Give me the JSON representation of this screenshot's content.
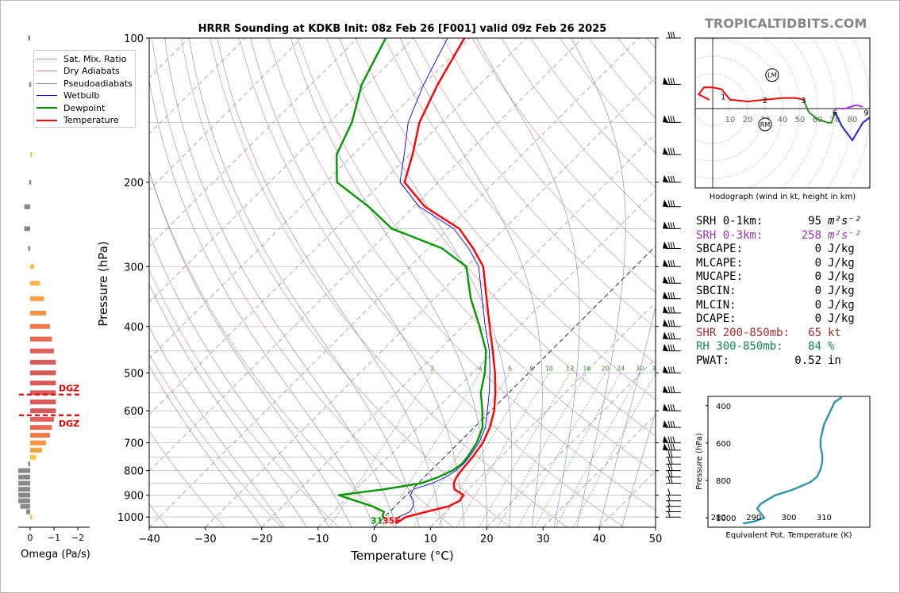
{
  "watermark": "TROPICALTIDBITS.COM",
  "title": "HRRR Sounding at KDKB Init: 08z Feb 26 [F001] valid 09z Feb 26 2025",
  "legend": [
    {
      "label": "Sat. Mix. Ratio",
      "color": "#2e8b2e",
      "style": "dotted"
    },
    {
      "label": "Dry Adiabats",
      "color": "#d98080",
      "style": "solid"
    },
    {
      "label": "Pseudoadiabats",
      "color": "#8080c8",
      "style": "solid"
    },
    {
      "label": "Wetbulb",
      "color": "#0000ff",
      "style": "solid"
    },
    {
      "label": "Dewpoint",
      "color": "#009900",
      "style": "thick"
    },
    {
      "label": "Temperature",
      "color": "#ff0000",
      "style": "thick"
    }
  ],
  "params": [
    {
      "label": "SRH 0-1km:",
      "value": "95",
      "unit": "m²s⁻²",
      "color": "#000000"
    },
    {
      "label": "SRH 0-3km:",
      "value": "258",
      "unit": "m²s⁻²",
      "color": "#9933aa"
    },
    {
      "label": "SBCAPE:",
      "value": "0",
      "unit": "J/kg",
      "color": "#000000"
    },
    {
      "label": "MLCAPE:",
      "value": "0",
      "unit": "J/kg",
      "color": "#000000"
    },
    {
      "label": "MUCAPE:",
      "value": "0",
      "unit": "J/kg",
      "color": "#000000"
    },
    {
      "label": "SBCIN:",
      "value": "0",
      "unit": "J/kg",
      "color": "#000000"
    },
    {
      "label": "MLCIN:",
      "value": "0",
      "unit": "J/kg",
      "color": "#000000"
    },
    {
      "label": "DCAPE:",
      "value": "0",
      "unit": "J/kg",
      "color": "#000000"
    },
    {
      "label": "SHR 200-850mb:",
      "value": "65",
      "unit": "kt",
      "color": "#a52a2a"
    },
    {
      "label": "RH 300-850mb:",
      "value": "84",
      "unit": "%",
      "color": "#138a4c"
    },
    {
      "label": "PWAT:",
      "value": "0.52",
      "unit": "in",
      "color": "#000000"
    }
  ],
  "hodograph": {
    "caption": "Hodograph (wind in kt, height in km)",
    "ring_labels": [
      "10",
      "20",
      "30",
      "40",
      "50",
      "60",
      "70",
      "80"
    ],
    "height_labels": [
      "1",
      "2",
      "3",
      "6",
      "9"
    ],
    "lm_label": "LM",
    "rm_label": "RM"
  },
  "omega": {
    "xlabel": "Omega (Pa/s)",
    "ticks": [
      "0",
      "−1",
      "−2"
    ],
    "dgz_labels": [
      "DGZ",
      "DGZ"
    ]
  },
  "surface_label": "31",
  "surface_label_2": "35F",
  "chart_data": [
    {
      "type": "line",
      "name": "skew-t",
      "title": "HRRR Sounding at KDKB Init: 08z Feb 26 [F001] valid 09z Feb 26 2025",
      "xlabel": "Temperature (°C)",
      "ylabel": "Pressure (hPa)",
      "x_ticks": [
        "−40",
        "−30",
        "−20",
        "−10",
        "0",
        "10",
        "20",
        "30",
        "40",
        "50"
      ],
      "y_ticks": [
        "100",
        "200",
        "300",
        "400",
        "500",
        "600",
        "700",
        "800",
        "900",
        "1000"
      ],
      "xlim": [
        -40,
        50
      ],
      "ylim": [
        1050,
        100
      ],
      "y_scale": "log",
      "mixing_ratio_labels": [
        "2",
        "4",
        "6",
        "8",
        "10",
        "13",
        "16",
        "20",
        "24",
        "30",
        "36"
      ],
      "series": [
        {
          "name": "Temperature",
          "color": "#ff0000",
          "p": [
            1030,
            1000,
            975,
            950,
            925,
            900,
            875,
            850,
            825,
            800,
            775,
            750,
            700,
            650,
            600,
            550,
            500,
            450,
            400,
            350,
            300,
            275,
            250,
            225,
            200,
            175,
            150,
            125,
            100
          ],
          "t": [
            3.2,
            3.8,
            6.5,
            9.5,
            10.5,
            10.2,
            7.5,
            6.3,
            5.7,
            5.4,
            5.2,
            5.0,
            4.3,
            2.8,
            0.6,
            -2.4,
            -6.0,
            -10.3,
            -15.2,
            -20.7,
            -27.0,
            -32.0,
            -38.0,
            -48.0,
            -56.0,
            -59.5,
            -64.0,
            -67.5,
            -71.0
          ]
        },
        {
          "name": "Dewpoint",
          "color": "#009900",
          "p": [
            1010,
            995,
            975,
            950,
            925,
            900,
            875,
            850,
            825,
            800,
            775,
            750,
            700,
            650,
            600,
            550,
            500,
            450,
            400,
            350,
            300,
            275,
            250,
            225,
            200,
            175,
            150,
            125,
            100
          ],
          "t": [
            0.5,
            -0.5,
            -1.0,
            -4.0,
            -8.0,
            -12.0,
            -5.0,
            0.5,
            2.5,
            3.8,
            4.3,
            4.1,
            3.2,
            1.5,
            -1.5,
            -5.0,
            -7.8,
            -11.5,
            -17.0,
            -23.5,
            -30.0,
            -37.5,
            -50.0,
            -58.0,
            -68.0,
            -73.0,
            -76.0,
            -81.0,
            -85.0
          ]
        },
        {
          "name": "Wetbulb",
          "color": "#0000ff",
          "p": [
            1000,
            975,
            950,
            925,
            900,
            875,
            850,
            825,
            800,
            775,
            750,
            700,
            650,
            600,
            550,
            500,
            450,
            400,
            350,
            300,
            275,
            250,
            225,
            200,
            175,
            150,
            125,
            100
          ],
          "t": [
            2.5,
            3.6,
            3.2,
            2.3,
            0.7,
            0.2,
            2.5,
            3.8,
            4.4,
            4.6,
            4.4,
            3.6,
            2.0,
            -0.6,
            -3.5,
            -6.9,
            -10.9,
            -16.0,
            -21.5,
            -27.8,
            -32.8,
            -39.0,
            -49.0,
            -56.8,
            -61.0,
            -66.0,
            -70.0,
            -74.0
          ]
        }
      ],
      "omega_levels": [
        {
          "p": 1000,
          "w": -0.1,
          "color": "#f5c542"
        },
        {
          "p": 975,
          "w": 0.2,
          "color": "#888888"
        },
        {
          "p": 950,
          "w": 0.5,
          "color": "#888888"
        },
        {
          "p": 925,
          "w": 0.6,
          "color": "#888888"
        },
        {
          "p": 900,
          "w": 0.6,
          "color": "#888888"
        },
        {
          "p": 875,
          "w": 0.6,
          "color": "#888888"
        },
        {
          "p": 850,
          "w": 0.6,
          "color": "#888888"
        },
        {
          "p": 825,
          "w": 0.6,
          "color": "#888888"
        },
        {
          "p": 800,
          "w": 0.6,
          "color": "#888888"
        },
        {
          "p": 775,
          "w": 0.1,
          "color": "#888888"
        },
        {
          "p": 750,
          "w": -0.3,
          "color": "#f5c542"
        },
        {
          "p": 725,
          "w": -0.6,
          "color": "#f5a142"
        },
        {
          "p": 700,
          "w": -0.8,
          "color": "#f59342"
        },
        {
          "p": 675,
          "w": -1.0,
          "color": "#f07a4a"
        },
        {
          "p": 650,
          "w": -1.1,
          "color": "#e9684f"
        },
        {
          "p": 625,
          "w": -1.2,
          "color": "#e0605a"
        },
        {
          "p": 600,
          "w": -1.3,
          "color": "#d95a5a"
        },
        {
          "p": 575,
          "w": -1.3,
          "color": "#d95a5a"
        },
        {
          "p": 550,
          "w": -1.3,
          "color": "#d95a5a"
        },
        {
          "p": 525,
          "w": -1.3,
          "color": "#d95a5a"
        },
        {
          "p": 500,
          "w": -1.3,
          "color": "#d95a5a"
        },
        {
          "p": 475,
          "w": -1.3,
          "color": "#d95a5a"
        },
        {
          "p": 450,
          "w": -1.2,
          "color": "#e0605a"
        },
        {
          "p": 425,
          "w": -1.1,
          "color": "#e9684f"
        },
        {
          "p": 400,
          "w": -1.0,
          "color": "#f07a4a"
        },
        {
          "p": 375,
          "w": -0.8,
          "color": "#f59342"
        },
        {
          "p": 350,
          "w": -0.7,
          "color": "#f5a142"
        },
        {
          "p": 325,
          "w": -0.5,
          "color": "#f5b542"
        },
        {
          "p": 300,
          "w": -0.2,
          "color": "#f5c542"
        },
        {
          "p": 275,
          "w": 0.1,
          "color": "#888888"
        },
        {
          "p": 250,
          "w": 0.3,
          "color": "#888888"
        },
        {
          "p": 225,
          "w": 0.3,
          "color": "#888888"
        },
        {
          "p": 200,
          "w": 0.05,
          "color": "#888888"
        },
        {
          "p": 175,
          "w": -0.1,
          "color": "#f5c542"
        },
        {
          "p": 125,
          "w": 0.05,
          "color": "#888888"
        },
        {
          "p": 100,
          "w": 0.1,
          "color": "#888888"
        }
      ],
      "dgz_pressures": [
        555,
        613
      ],
      "wind_barbs_p": [
        100,
        125,
        150,
        175,
        200,
        225,
        250,
        275,
        300,
        325,
        350,
        375,
        400,
        425,
        450,
        500,
        550,
        600,
        650,
        700,
        725,
        750,
        775,
        800,
        825,
        850,
        900,
        925,
        950,
        975,
        1000
      ]
    },
    {
      "type": "line",
      "name": "hodograph",
      "title": "",
      "xlabel": "Hodograph (wind in kt, height in km)",
      "xlim": [
        -10,
        90
      ],
      "ylim": [
        -45,
        40
      ],
      "series": [
        {
          "name": "0-3 km",
          "color": "#ff0000",
          "u": [
            -2,
            -8,
            -5,
            0,
            5,
            10,
            20,
            30,
            40,
            48,
            52
          ],
          "v": [
            5,
            8,
            12,
            12,
            11,
            5,
            4,
            5,
            6,
            6,
            5
          ]
        },
        {
          "name": "3-6 km",
          "color": "#2a8a2a",
          "u": [
            52,
            55,
            60,
            66,
            68,
            70
          ],
          "v": [
            5,
            -2,
            -6,
            -8,
            -8,
            -2
          ]
        },
        {
          "name": "6-9 km",
          "color": "#1f1fe0",
          "u": [
            70,
            74,
            80,
            86,
            90
          ],
          "v": [
            -2,
            -10,
            -18,
            -8,
            -5
          ]
        },
        {
          "name": "9+ km",
          "color": "#aa33cc",
          "u": [
            70,
            76,
            82,
            86
          ],
          "v": [
            0,
            0,
            2,
            1
          ]
        }
      ],
      "points": [
        {
          "label": "1",
          "u": 6,
          "v": 7
        },
        {
          "label": "2",
          "u": 30,
          "v": 5
        },
        {
          "label": "3",
          "u": 52,
          "v": 5
        },
        {
          "label": "6",
          "u": 70,
          "v": -2
        },
        {
          "label": "9",
          "u": 88,
          "v": -2
        },
        {
          "label": "LM",
          "u": 34,
          "v": 19
        },
        {
          "label": "RM",
          "u": 30,
          "v": -9
        }
      ]
    },
    {
      "type": "line",
      "name": "theta-e",
      "title": "",
      "xlabel": "Equivalent Pot. Temperature (K)",
      "ylabel": "Pressure (hPa)",
      "x_ticks": [
        "280",
        "290",
        "300",
        "310"
      ],
      "y_ticks": [
        "400",
        "600",
        "800",
        "1000"
      ],
      "x": [
        287,
        290,
        293,
        292,
        291,
        292,
        296,
        301,
        306,
        308,
        309,
        309.5,
        309.5,
        309,
        309,
        309.5,
        310,
        311,
        312,
        313,
        315
      ],
      "y": [
        1030,
        1020,
        1000,
        975,
        950,
        925,
        880,
        850,
        810,
        780,
        740,
        700,
        660,
        620,
        580,
        540,
        500,
        460,
        420,
        380,
        355
      ],
      "xlim": [
        277,
        323
      ],
      "ylim": [
        1050,
        350
      ]
    }
  ]
}
